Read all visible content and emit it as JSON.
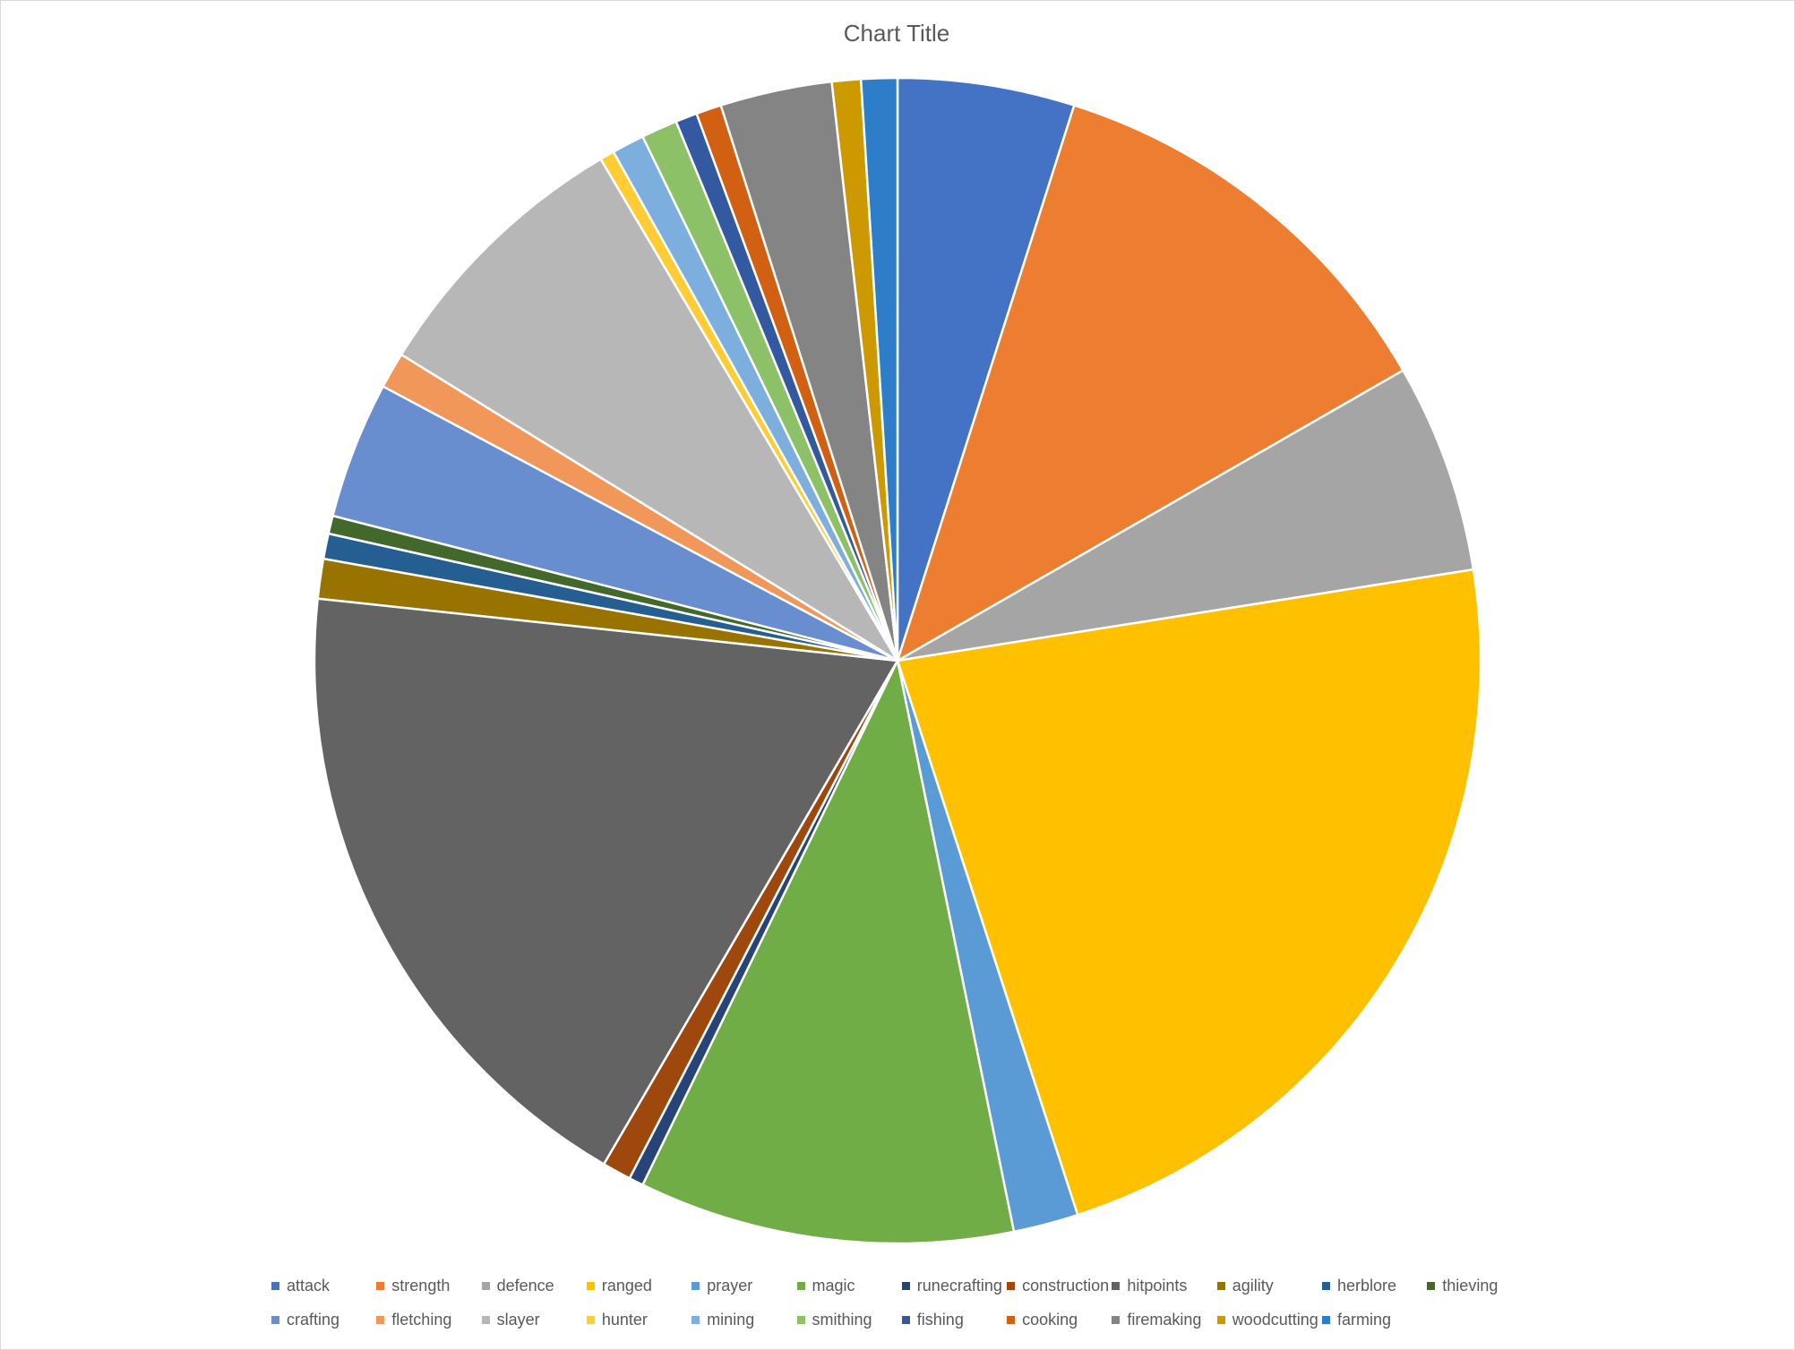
{
  "chart_data": {
    "type": "pie",
    "title": "Chart Title",
    "legend_position": "bottom",
    "start_angle": "12 o'clock",
    "direction": "clockwise",
    "slices": [
      {
        "label": "attack",
        "value": 4.9,
        "color": "#4472C4"
      },
      {
        "label": "strength",
        "value": 11.8,
        "color": "#ED7D31"
      },
      {
        "label": "defence",
        "value": 5.8,
        "color": "#A5A5A5"
      },
      {
        "label": "ranged",
        "value": 22.5,
        "color": "#FFC000"
      },
      {
        "label": "prayer",
        "value": 1.8,
        "color": "#5B9BD5"
      },
      {
        "label": "magic",
        "value": 10.4,
        "color": "#70AD47"
      },
      {
        "label": "runecrafting",
        "value": 0.4,
        "color": "#264478"
      },
      {
        "label": "construction",
        "value": 0.8,
        "color": "#9E480E"
      },
      {
        "label": "hitpoints",
        "value": 18.3,
        "color": "#636363"
      },
      {
        "label": "agility",
        "value": 1.1,
        "color": "#997300"
      },
      {
        "label": "herblore",
        "value": 0.7,
        "color": "#255E91"
      },
      {
        "label": "thieving",
        "value": 0.5,
        "color": "#43682B"
      },
      {
        "label": "crafting",
        "value": 3.8,
        "color": "#698ED0"
      },
      {
        "label": "fletching",
        "value": 1.0,
        "color": "#F1975A"
      },
      {
        "label": "slayer",
        "value": 7.7,
        "color": "#B7B7B7"
      },
      {
        "label": "hunter",
        "value": 0.4,
        "color": "#FFCD33"
      },
      {
        "label": "mining",
        "value": 0.9,
        "color": "#7CAFDD"
      },
      {
        "label": "smithing",
        "value": 1.0,
        "color": "#8CC168"
      },
      {
        "label": "fishing",
        "value": 0.6,
        "color": "#335AA1"
      },
      {
        "label": "cooking",
        "value": 0.7,
        "color": "#D26012"
      },
      {
        "label": "firemaking",
        "value": 3.1,
        "color": "#848484"
      },
      {
        "label": "woodcutting",
        "value": 0.8,
        "color": "#CC9A00"
      },
      {
        "label": "farming",
        "value": 1.0,
        "color": "#2E7DC8"
      }
    ]
  }
}
